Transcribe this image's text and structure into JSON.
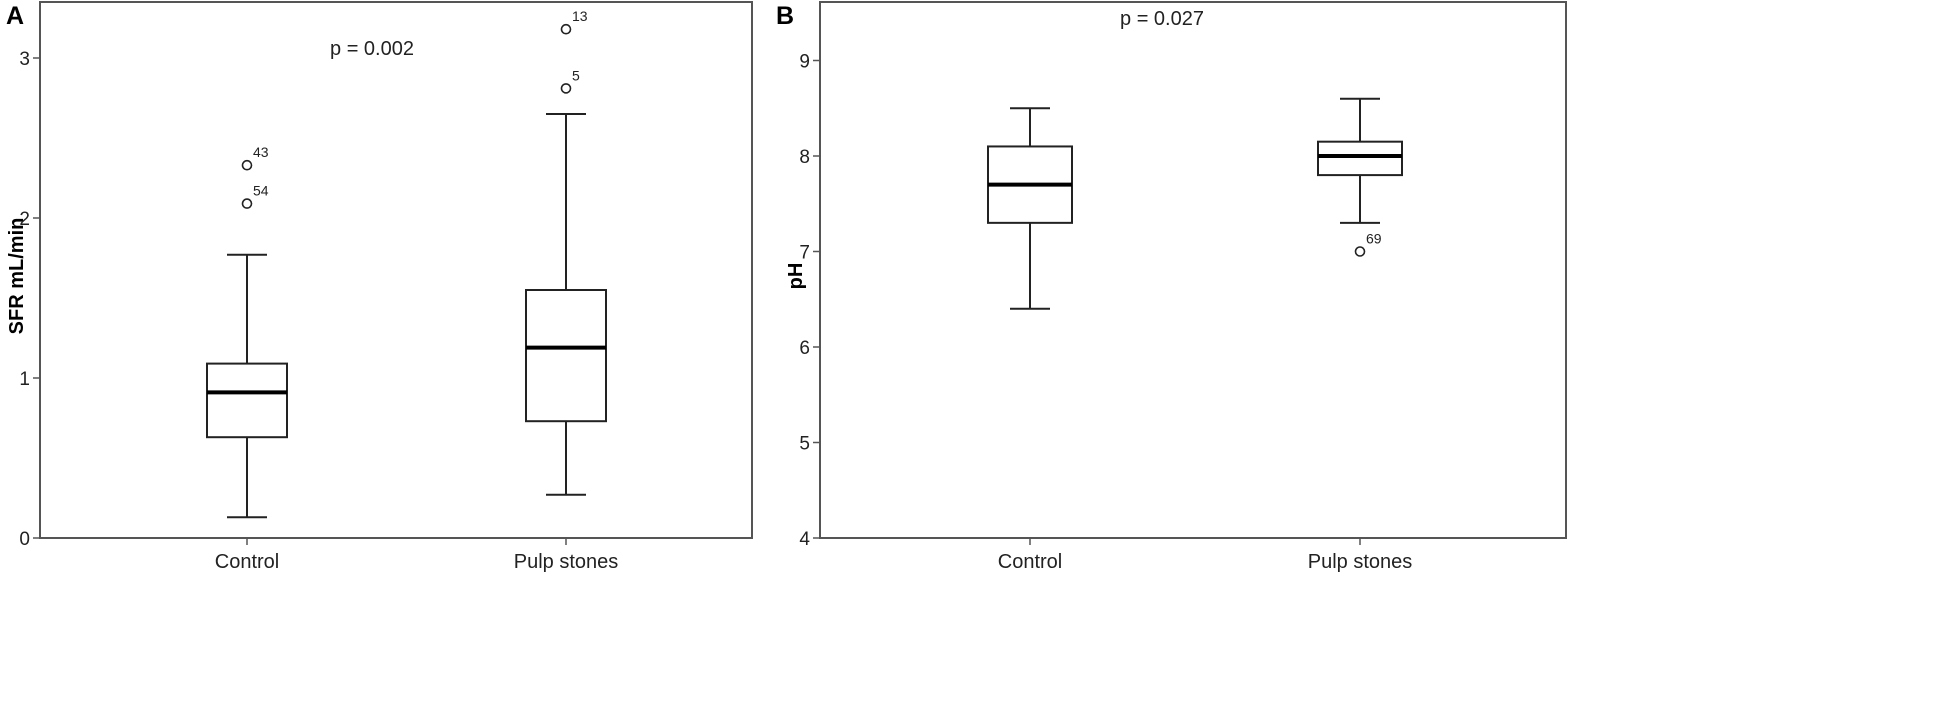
{
  "chart_data": [
    {
      "type": "boxplot",
      "panel_label": "A",
      "ylabel": "SFR mL/min",
      "ylim": [
        0,
        3.3
      ],
      "yticks": [
        0,
        1,
        2,
        3
      ],
      "yticklabels": [
        "0",
        "1",
        "2",
        "3"
      ],
      "annotation": "p = 0.002",
      "categories": [
        "Control",
        "Pulp stones"
      ],
      "boxes": [
        {
          "category": "Control",
          "whisker_low": 0.13,
          "q1": 0.63,
          "median": 0.91,
          "q3": 1.09,
          "whisker_high": 1.77,
          "outliers": [
            {
              "value": 2.33,
              "label": "43"
            },
            {
              "value": 2.09,
              "label": "54"
            }
          ]
        },
        {
          "category": "Pulp stones",
          "whisker_low": 0.27,
          "q1": 0.73,
          "median": 1.19,
          "q3": 1.55,
          "whisker_high": 2.65,
          "outliers": [
            {
              "value": 3.18,
              "label": "13"
            },
            {
              "value": 2.81,
              "label": "5"
            }
          ]
        }
      ],
      "grid": false
    },
    {
      "type": "boxplot",
      "panel_label": "B",
      "ylabel": "pH",
      "ylim": [
        4,
        9.55
      ],
      "yticks": [
        4,
        5,
        6,
        7,
        8,
        9
      ],
      "yticklabels": [
        "4",
        "5",
        "6",
        "7",
        "8",
        "9"
      ],
      "annotation": "p = 0.027",
      "categories": [
        "Control",
        "Pulp stones"
      ],
      "boxes": [
        {
          "category": "Control",
          "whisker_low": 6.4,
          "q1": 7.3,
          "median": 7.7,
          "q3": 8.1,
          "whisker_high": 8.5,
          "outliers": []
        },
        {
          "category": "Pulp stones",
          "whisker_low": 7.3,
          "q1": 7.8,
          "median": 8.0,
          "q3": 8.15,
          "whisker_high": 8.6,
          "outliers": [
            {
              "value": 7.0,
              "label": "69"
            }
          ]
        }
      ],
      "grid": false
    }
  ]
}
